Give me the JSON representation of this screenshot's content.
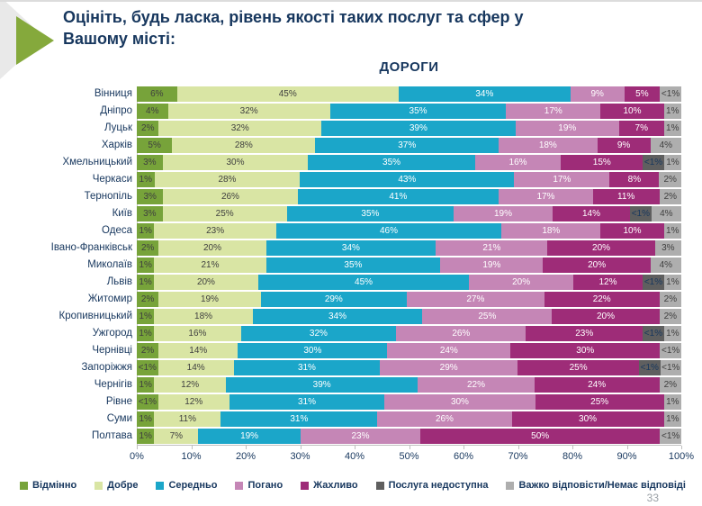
{
  "header": {
    "title": "Оцініть, будь ласка, рівень якості таких послуг та сфер у Вашому місті:"
  },
  "page_number": "33",
  "chart_data": {
    "type": "bar",
    "subtype": "horizontal-stacked-100percent",
    "title": "ДОРОГИ",
    "xlim": [
      0,
      100
    ],
    "grid": false,
    "legend_position": "bottom",
    "axis_ticks": [
      "0%",
      "10%",
      "20%",
      "30%",
      "40%",
      "50%",
      "60%",
      "70%",
      "80%",
      "90%",
      "100%"
    ],
    "legend_keys": [
      "excellent",
      "good",
      "average",
      "bad",
      "terrible",
      "service-unavailable",
      "no-answer"
    ],
    "legend": [
      {
        "label": "Відмінно",
        "color": "#77a33a"
      },
      {
        "label": "Добре",
        "color": "#d9e5a4"
      },
      {
        "label": "Середньо",
        "color": "#1ba6c9"
      },
      {
        "label": "Погано",
        "color": "#c586b6"
      },
      {
        "label": "Жахливо",
        "color": "#9e2c78"
      },
      {
        "label": "Послуга недоступна",
        "color": "#5f5f5f"
      },
      {
        "label": "Важко відповісти/Немає відповіді",
        "color": "#aeaeae"
      }
    ],
    "label_colors": [
      "#3f3f3f",
      "#3f3f3f",
      "#ffffff",
      "#ffffff",
      "#ffffff",
      "#17375e",
      "#3f3f3f"
    ],
    "rows": [
      {
        "city": "Вінниця",
        "values": [
          6,
          45,
          34,
          9,
          5,
          0,
          0.7
        ],
        "labels": [
          "6%",
          "45%",
          "34%",
          "9%",
          "5%",
          "",
          "<1%"
        ]
      },
      {
        "city": "Дніпро",
        "values": [
          4,
          32,
          35,
          17,
          10,
          0,
          1
        ],
        "labels": [
          "4%",
          "32%",
          "35%",
          "17%",
          "10%",
          "",
          "1%"
        ]
      },
      {
        "city": "Луцьк",
        "values": [
          2,
          32,
          39,
          19,
          7,
          0,
          1
        ],
        "labels": [
          "2%",
          "32%",
          "39%",
          "19%",
          "7%",
          "",
          "1%"
        ]
      },
      {
        "city": "Харків",
        "values": [
          5,
          28,
          37,
          18,
          9,
          0,
          4
        ],
        "labels": [
          "5%",
          "28%",
          "37%",
          "18%",
          "9%",
          "",
          "4%"
        ]
      },
      {
        "city": "Хмельницький",
        "values": [
          3,
          30,
          35,
          16,
          15,
          0.7,
          1
        ],
        "labels": [
          "3%",
          "30%",
          "35%",
          "16%",
          "15%",
          "<1%",
          "1%"
        ]
      },
      {
        "city": "Черкаси",
        "values": [
          1,
          28,
          43,
          17,
          8,
          0,
          2
        ],
        "labels": [
          "1%",
          "28%",
          "43%",
          "17%",
          "8%",
          "",
          "2%"
        ]
      },
      {
        "city": "Тернопіль",
        "values": [
          3,
          26,
          41,
          17,
          11,
          0,
          2
        ],
        "labels": [
          "3%",
          "26%",
          "41%",
          "17%",
          "11%",
          "",
          "2%"
        ]
      },
      {
        "city": "Київ",
        "values": [
          3,
          25,
          35,
          19,
          14,
          0.7,
          4
        ],
        "labels": [
          "3%",
          "25%",
          "35%",
          "19%",
          "14%",
          "<1%",
          "4%"
        ]
      },
      {
        "city": "Одеса",
        "values": [
          1,
          23,
          46,
          18,
          10,
          0,
          1
        ],
        "labels": [
          "1%",
          "23%",
          "46%",
          "18%",
          "10%",
          "",
          "1%"
        ]
      },
      {
        "city": "Івано-Франківськ",
        "values": [
          2,
          20,
          34,
          21,
          20,
          0,
          3
        ],
        "labels": [
          "2%",
          "20%",
          "34%",
          "21%",
          "20%",
          "",
          "3%"
        ]
      },
      {
        "city": "Миколаїв",
        "values": [
          1,
          21,
          35,
          19,
          20,
          0,
          4
        ],
        "labels": [
          "1%",
          "21%",
          "35%",
          "19%",
          "20%",
          "",
          "4%"
        ]
      },
      {
        "city": "Львів",
        "values": [
          1,
          20,
          45,
          20,
          12,
          0.7,
          1
        ],
        "labels": [
          "1%",
          "20%",
          "45%",
          "20%",
          "12%",
          "<1%",
          "1%"
        ]
      },
      {
        "city": "Житомир",
        "values": [
          2,
          19,
          29,
          27,
          22,
          0,
          2
        ],
        "labels": [
          "2%",
          "19%",
          "29%",
          "27%",
          "22%",
          "",
          "2%"
        ]
      },
      {
        "city": "Кропивницький",
        "values": [
          1,
          18,
          34,
          25,
          20,
          0,
          2
        ],
        "labels": [
          "1%",
          "18%",
          "34%",
          "25%",
          "20%",
          "",
          "2%"
        ]
      },
      {
        "city": "Ужгород",
        "values": [
          1,
          16,
          32,
          26,
          23,
          0.7,
          1
        ],
        "labels": [
          "1%",
          "16%",
          "32%",
          "26%",
          "23%",
          "<1%",
          "1%"
        ]
      },
      {
        "city": "Чернівці",
        "values": [
          2,
          14,
          30,
          24,
          30,
          0,
          0.7
        ],
        "labels": [
          "2%",
          "14%",
          "30%",
          "24%",
          "30%",
          "",
          "<1%"
        ]
      },
      {
        "city": "Запоріжжя",
        "values": [
          0.7,
          14,
          31,
          29,
          25,
          0.7,
          0.7
        ],
        "labels": [
          "<1%",
          "14%",
          "31%",
          "29%",
          "25%",
          "<1%",
          "<1%"
        ]
      },
      {
        "city": "Чернігів",
        "values": [
          1,
          12,
          39,
          22,
          24,
          0,
          2
        ],
        "labels": [
          "1%",
          "12%",
          "39%",
          "22%",
          "24%",
          "",
          "2%"
        ]
      },
      {
        "city": "Рівне",
        "values": [
          0.7,
          12,
          31,
          30,
          25,
          0,
          1
        ],
        "labels": [
          "<1%",
          "12%",
          "31%",
          "30%",
          "25%",
          "",
          "1%"
        ]
      },
      {
        "city": "Суми",
        "values": [
          1,
          11,
          31,
          26,
          30,
          0,
          1
        ],
        "labels": [
          "1%",
          "11%",
          "31%",
          "26%",
          "30%",
          "",
          "1%"
        ]
      },
      {
        "city": "Полтава",
        "values": [
          1,
          7,
          19,
          23,
          50,
          0,
          0.7
        ],
        "labels": [
          "1%",
          "7%",
          "19%",
          "23%",
          "50%",
          "",
          "<1%"
        ]
      }
    ]
  }
}
